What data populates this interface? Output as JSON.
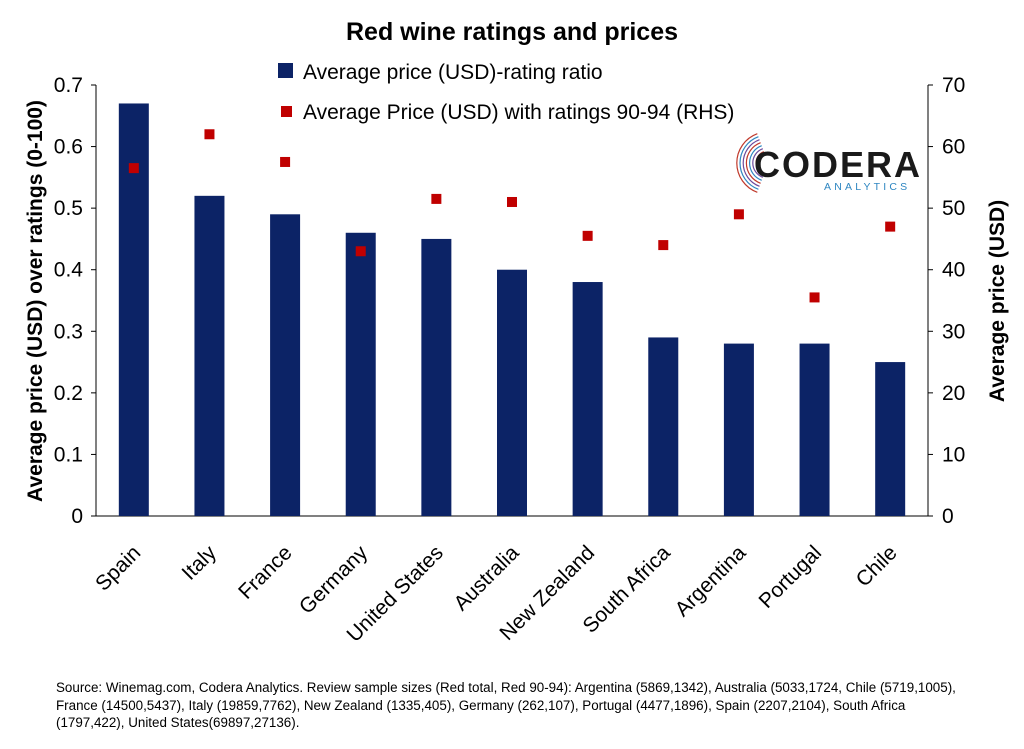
{
  "chart_data": {
    "type": "bar",
    "title": "Red wine ratings and prices",
    "categories": [
      "Spain",
      "Italy",
      "France",
      "Germany",
      "United States",
      "Australia",
      "New Zealand",
      "South Africa",
      "Argentina",
      "Portugal",
      "Chile"
    ],
    "series": [
      {
        "name": "Average price (USD)-rating ratio",
        "type": "bar",
        "axis": "left",
        "color": "#0c2366",
        "values": [
          0.67,
          0.52,
          0.49,
          0.46,
          0.45,
          0.4,
          0.38,
          0.29,
          0.28,
          0.28,
          0.25
        ]
      },
      {
        "name": "Average Price (USD) with ratings 90-94 (RHS)",
        "type": "scatter",
        "axis": "right",
        "color": "#c00000",
        "values": [
          56.5,
          62.0,
          57.5,
          43.0,
          51.5,
          51.0,
          45.5,
          44.0,
          49.0,
          35.5,
          47.0
        ]
      }
    ],
    "y_left": {
      "label": "Average price (USD)  over ratings (0-100)",
      "min": 0,
      "max": 0.7,
      "ticks": [
        "0",
        "0.1",
        "0.2",
        "0.3",
        "0.4",
        "0.5",
        "0.6",
        "0.7"
      ]
    },
    "y_right": {
      "label": "Average price (USD)",
      "min": 0,
      "max": 70,
      "ticks": [
        "0",
        "10",
        "20",
        "30",
        "40",
        "50",
        "60",
        "70"
      ]
    },
    "legend_position": "top",
    "grid": false
  },
  "logo": {
    "name": "CODERA",
    "sub": "ANALYTICS",
    "colors": [
      "#c0392b",
      "#6d4a9c",
      "#2e86c1"
    ]
  },
  "source": "Source: Winemag.com, Codera Analytics. Review sample sizes (Red total, Red 90-94): Argentina (5869,1342), Australia (5033,1724, Chile (5719,1005), France (14500,5437),  Italy (19859,7762), New Zealand (1335,405), Germany (262,107), Portugal (4477,1896), Spain (2207,2104), South Africa (1797,422), United States(69897,27136)."
}
